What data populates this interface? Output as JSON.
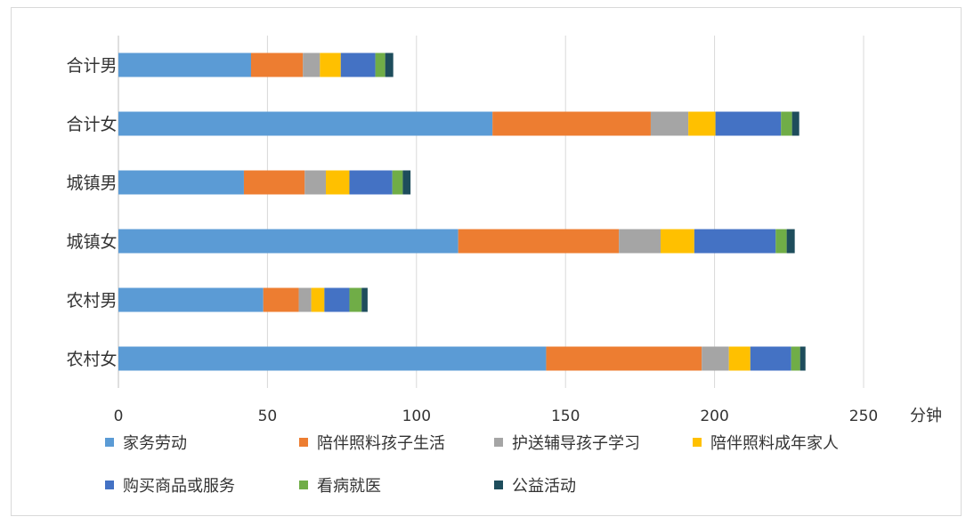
{
  "chart_data": {
    "type": "bar",
    "orientation": "horizontal",
    "stacked": true,
    "categories": [
      "合计男",
      "合计女",
      "城镇男",
      "城镇女",
      "农村男",
      "农村女"
    ],
    "xlim": [
      0,
      250
    ],
    "xticks": [
      0,
      50,
      100,
      150,
      200,
      250
    ],
    "xlabel": "分钟",
    "grid": true,
    "legend_position": "bottom",
    "series": [
      {
        "name": "家务劳动",
        "color": "#5B9BD5",
        "values": [
          44.5,
          125.5,
          42.1,
          114.0,
          48.6,
          143.5
        ]
      },
      {
        "name": "陪伴照料孩子生活",
        "color": "#ED7D31",
        "values": [
          17.4,
          53.1,
          20.4,
          53.9,
          11.9,
          52.2
        ]
      },
      {
        "name": "护送辅导孩子学习",
        "color": "#A5A5A5",
        "values": [
          5.7,
          12.6,
          7.1,
          14.0,
          4.2,
          9.1
        ]
      },
      {
        "name": "陪伴照料成年家人",
        "color": "#FFC000",
        "values": [
          7.0,
          9.1,
          7.9,
          11.3,
          4.4,
          7.2
        ]
      },
      {
        "name": "购买商品或服务",
        "color": "#4472C4",
        "values": [
          11.6,
          22.0,
          14.4,
          27.3,
          8.4,
          13.7
        ]
      },
      {
        "name": "看病就医",
        "color": "#70AD47",
        "values": [
          3.3,
          3.7,
          3.5,
          3.7,
          4.1,
          3.0
        ]
      },
      {
        "name": "公益活动",
        "color": "#1E4D5C",
        "values": [
          2.7,
          2.4,
          2.6,
          2.7,
          2.0,
          1.8
        ]
      }
    ]
  }
}
